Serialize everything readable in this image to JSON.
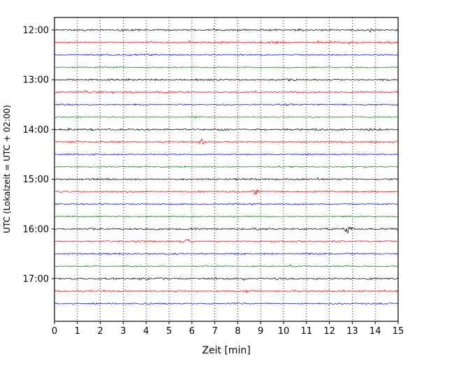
{
  "chart_data": {
    "type": "line",
    "chart_kind": "seismogram-helicorder",
    "title": "",
    "xlabel": "Zeit  [min]",
    "ylabel": "UTC (Lokalzeit = UTC + 02:00)",
    "xlim": [
      0,
      15
    ],
    "x_ticks": [
      0,
      1,
      2,
      3,
      4,
      5,
      6,
      7,
      8,
      9,
      10,
      11,
      12,
      13,
      14,
      15
    ],
    "grid": "vertical dotted lines at every minute",
    "legend": "none",
    "minutes_per_line": 15,
    "trace_colors": {
      "black": "#000000",
      "red": "#ff0000",
      "blue": "#0000ff",
      "green": "#008000"
    },
    "hour_labels": [
      "12:00",
      "13:00",
      "14:00",
      "15:00",
      "16:00",
      "17:00"
    ],
    "traces": [
      {
        "start": "12:00",
        "color": "black",
        "hour_label": "12:00"
      },
      {
        "start": "12:15",
        "color": "red",
        "hour_label": ""
      },
      {
        "start": "12:30",
        "color": "blue",
        "hour_label": ""
      },
      {
        "start": "12:45",
        "color": "green",
        "hour_label": ""
      },
      {
        "start": "13:00",
        "color": "black",
        "hour_label": "13:00"
      },
      {
        "start": "13:15",
        "color": "red",
        "hour_label": ""
      },
      {
        "start": "13:30",
        "color": "blue",
        "hour_label": ""
      },
      {
        "start": "13:45",
        "color": "green",
        "hour_label": ""
      },
      {
        "start": "14:00",
        "color": "black",
        "hour_label": "14:00"
      },
      {
        "start": "14:15",
        "color": "red",
        "hour_label": ""
      },
      {
        "start": "14:30",
        "color": "blue",
        "hour_label": ""
      },
      {
        "start": "14:45",
        "color": "green",
        "hour_label": ""
      },
      {
        "start": "15:00",
        "color": "black",
        "hour_label": "15:00"
      },
      {
        "start": "15:15",
        "color": "red",
        "hour_label": ""
      },
      {
        "start": "15:30",
        "color": "blue",
        "hour_label": ""
      },
      {
        "start": "15:45",
        "color": "green",
        "hour_label": ""
      },
      {
        "start": "16:00",
        "color": "black",
        "hour_label": "16:00"
      },
      {
        "start": "16:15",
        "color": "red",
        "hour_label": ""
      },
      {
        "start": "16:30",
        "color": "blue",
        "hour_label": ""
      },
      {
        "start": "16:45",
        "color": "green",
        "hour_label": ""
      },
      {
        "start": "17:00",
        "color": "black",
        "hour_label": "17:00"
      },
      {
        "start": "17:15",
        "color": "red",
        "hour_label": ""
      },
      {
        "start": "17:30",
        "color": "blue",
        "hour_label": ""
      }
    ],
    "events": [
      {
        "trace": "12:15",
        "minute": 12.1,
        "amp": 2.5
      },
      {
        "trace": "12:30",
        "minute": 3.3,
        "amp": 1.5
      },
      {
        "trace": "13:15",
        "minute": 1.5,
        "amp": 1.8
      },
      {
        "trace": "14:15",
        "minute": 6.4,
        "amp": 5.0
      },
      {
        "trace": "15:15",
        "minute": 8.8,
        "amp": 4.5
      },
      {
        "trace": "16:00",
        "minute": 12.8,
        "amp": 6.0
      },
      {
        "trace": "16:15",
        "minute": 5.8,
        "amp": 2.0
      },
      {
        "trace": "17:15",
        "minute": 6.2,
        "amp": 1.6
      }
    ]
  }
}
